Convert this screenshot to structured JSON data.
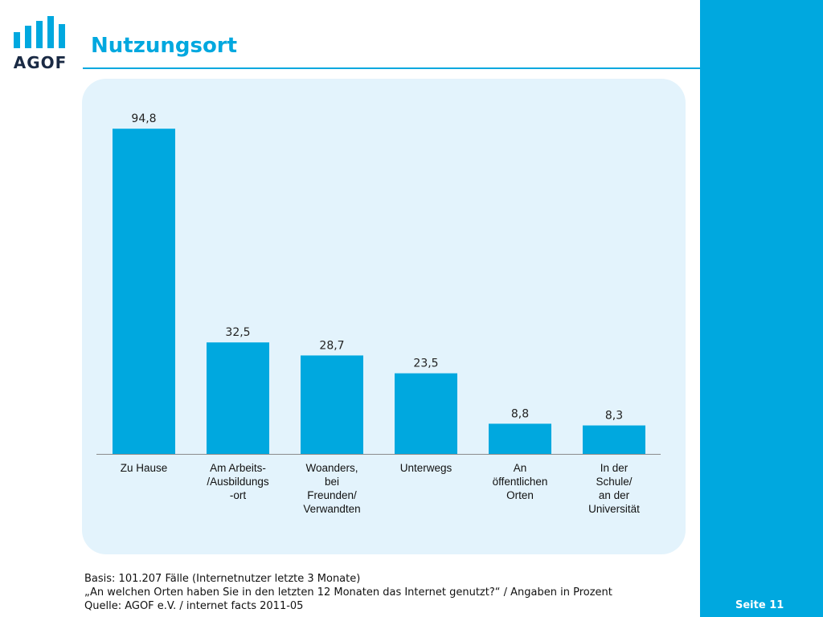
{
  "header": {
    "title": "Nutzungsort",
    "logo_text": "AGOF"
  },
  "chart_data": {
    "type": "bar",
    "categories": [
      "Zu Hause",
      "Am Arbeits-\n/Ausbildungs\n-ort",
      "Woanders,\nbei\nFreunden/\nVerwandten",
      "Unterwegs",
      "An\nöffentlichen\nOrten",
      "In der\nSchule/\nan der\nUniversität"
    ],
    "values": [
      94.8,
      32.5,
      28.7,
      23.5,
      8.8,
      8.3
    ],
    "value_labels": [
      "94,8",
      "32,5",
      "28,7",
      "23,5",
      "8,8",
      "8,3"
    ],
    "ylim": [
      0,
      100
    ],
    "bar_color": "#00a8df",
    "grid": false,
    "legend": "none"
  },
  "footer": {
    "line1": "Basis: 101.207 Fälle (Internetnutzer letzte 3 Monate)",
    "line2": "„An welchen Orten haben Sie in den letzten 12 Monaten das Internet genutzt?“ / Angaben in Prozent",
    "line3": "Quelle: AGOF e.V. / internet facts 2011-05"
  },
  "page": {
    "label": "Seite 11"
  },
  "colors": {
    "accent": "#00a8df",
    "panel_bg": "#e3f3fc",
    "logo_dark": "#1a2a44"
  }
}
